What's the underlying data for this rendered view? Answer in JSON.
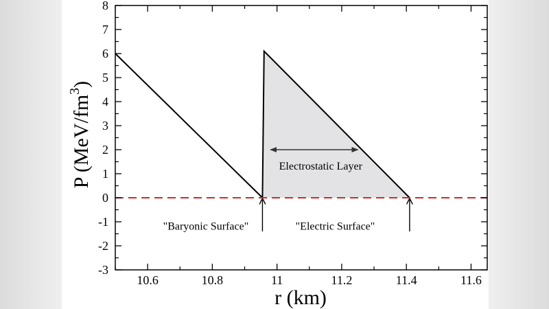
{
  "chart_data": {
    "type": "line",
    "xlabel": "r (km)",
    "ylabel_main": "P (MeV/fm",
    "ylabel_sup": "3",
    "ylabel_close": ")",
    "xlim": [
      10.5,
      11.65
    ],
    "ylim": [
      -3,
      8
    ],
    "xticks": [
      10.6,
      10.8,
      11,
      11.2,
      11.4,
      11.6
    ],
    "xtick_labels": [
      "10.6",
      "10.8",
      "11",
      "11.2",
      "11.4",
      "11.6"
    ],
    "yticks": [
      -3,
      -2,
      -1,
      0,
      1,
      2,
      3,
      4,
      5,
      6,
      7,
      8
    ],
    "ytick_labels": [
      "-3",
      "-2",
      "-1",
      "0",
      "1",
      "2",
      "3",
      "4",
      "5",
      "6",
      "7",
      "8"
    ],
    "grid": false,
    "series": [
      {
        "style": "solid",
        "color": "#000000",
        "points": [
          [
            10.5,
            6.0
          ],
          [
            10.955,
            0.0
          ],
          [
            10.96,
            6.1
          ],
          [
            11.41,
            0.0
          ]
        ]
      },
      {
        "style": "dashed",
        "color": "#d62728",
        "points": [
          [
            10.5,
            0.0
          ],
          [
            11.65,
            0.0
          ]
        ]
      }
    ],
    "shaded_region": {
      "fill": "#e3e3e6",
      "points": [
        [
          10.955,
          0.0
        ],
        [
          10.96,
          6.1
        ],
        [
          11.41,
          0.0
        ]
      ]
    },
    "annotations": [
      {
        "name": "electrostatic-layer",
        "text": "Electrostatic Layer",
        "x": 11.135,
        "y": 1.35
      },
      {
        "name": "baryonic-surface",
        "text": "\"Baryonic Surface\"",
        "x": 10.78,
        "y": -1.15
      },
      {
        "name": "electric-surface",
        "text": "\"Electric Surface\"",
        "x": 11.18,
        "y": -1.15
      }
    ],
    "double_arrow": {
      "x1": 10.98,
      "x2": 11.25,
      "y": 2.0
    },
    "surface_arrows": [
      {
        "name": "baryonic-surface-arrow",
        "x": 10.955,
        "y_from": -1.4,
        "y_to": -0.05
      },
      {
        "name": "electric-surface-arrow",
        "x": 11.41,
        "y_from": -1.4,
        "y_to": -0.05
      }
    ]
  }
}
